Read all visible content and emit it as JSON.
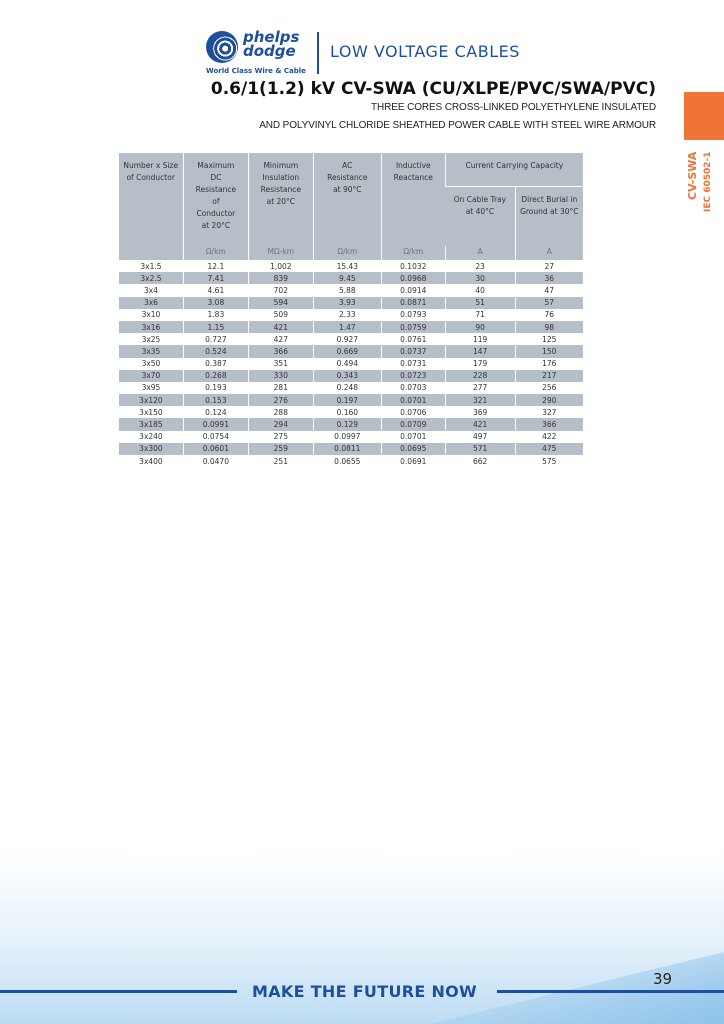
{
  "header": {
    "logo_text": "phelps dodge",
    "logo_tagline": "World Class  Wire & Cable",
    "section": "LOW VOLTAGE CABLES",
    "title": "0.6/1(1.2) kV CV-SWA (CU/XLPE/PVC/SWA/PVC)",
    "subtitle_1": "THREE CORES CROSS-LINKED POLYETHYLENE INSULATED",
    "subtitle_2": "AND POLYVINYL CHLORIDE SHEATHED POWER CABLE WITH STEEL WIRE ARMOUR"
  },
  "side_tab": {
    "label": "CV-SWA",
    "standard": "IEC 60502-1",
    "color": "#f07438"
  },
  "table": {
    "headers": [
      "Number x Size of Conductor",
      "Maximum DC Resistance of Conductor at 20°C",
      "Minimum Insulation Resistance at 20°C",
      "AC Resistance at 90°C",
      "Inductive Reactance",
      "Current Carrying Capacity"
    ],
    "sub_headers": [
      "On Cable Tray at 40°C",
      "Direct Burial in Ground at 30°C"
    ],
    "units": [
      "",
      "Ω/km",
      "MΩ-km",
      "Ω/km",
      "Ω/km",
      "A",
      "A"
    ],
    "rows": [
      [
        "3x1.5",
        "12.1",
        "1,002",
        "15.43",
        "0.1032",
        "23",
        "27"
      ],
      [
        "3x2.5",
        "7.41",
        "839",
        "9.45",
        "0.0968",
        "30",
        "36"
      ],
      [
        "3x4",
        "4.61",
        "702",
        "5.88",
        "0.0914",
        "40",
        "47"
      ],
      [
        "3x6",
        "3.08",
        "594",
        "3.93",
        "0.0871",
        "51",
        "57"
      ],
      [
        "3x10",
        "1.83",
        "509",
        "2.33",
        "0.0793",
        "71",
        "76"
      ],
      [
        "3x16",
        "1.15",
        "421",
        "1.47",
        "0.0759",
        "90",
        "98"
      ],
      [
        "3x25",
        "0.727",
        "427",
        "0.927",
        "0.0761",
        "119",
        "125"
      ],
      [
        "3x35",
        "0.524",
        "366",
        "0.669",
        "0.0737",
        "147",
        "150"
      ],
      [
        "3x50",
        "0.387",
        "351",
        "0.494",
        "0.0731",
        "179",
        "176"
      ],
      [
        "3x70",
        "0.268",
        "330",
        "0.343",
        "0.0723",
        "228",
        "217"
      ],
      [
        "3x95",
        "0.193",
        "281",
        "0.248",
        "0.0703",
        "277",
        "256"
      ],
      [
        "3x120",
        "0.153",
        "276",
        "0.197",
        "0.0701",
        "321",
        "290"
      ],
      [
        "3x150",
        "0.124",
        "288",
        "0.160",
        "0.0706",
        "369",
        "327"
      ],
      [
        "3x185",
        "0.0991",
        "294",
        "0.129",
        "0.0709",
        "421",
        "366"
      ],
      [
        "3x240",
        "0.0754",
        "275",
        "0.0997",
        "0.0701",
        "497",
        "422"
      ],
      [
        "3x300",
        "0.0601",
        "259",
        "0.0811",
        "0.0695",
        "571",
        "475"
      ],
      [
        "3x400",
        "0.0470",
        "251",
        "0.0655",
        "0.0691",
        "662",
        "575"
      ]
    ]
  },
  "footer": {
    "slogan": "MAKE THE FUTURE NOW",
    "page_number": "39"
  }
}
